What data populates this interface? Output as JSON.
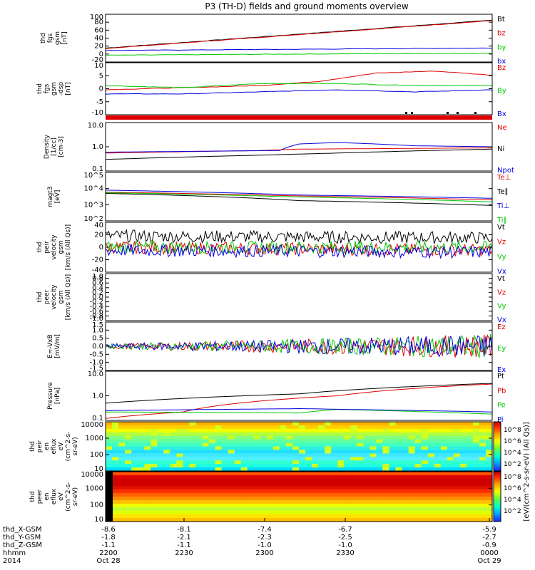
{
  "title": "P3 (TH-D) fields and ground moments overview",
  "colors": {
    "black": "#000000",
    "red": "#e00000",
    "green": "#00c800",
    "blue": "#0000e0"
  },
  "chart_data": [
    {
      "type": "line",
      "panel": "fgs_bt",
      "ylabel": [
        "thd",
        "fgs",
        "gsm",
        "[nT]"
      ],
      "ylim": [
        -20,
        100
      ],
      "yticks": [
        "100",
        "80",
        "60",
        "40",
        "20",
        "0",
        "-20"
      ],
      "series": [
        {
          "name": "Bt",
          "color": "#000000",
          "x": [
            0,
            1
          ],
          "y": [
            15,
            85
          ]
        },
        {
          "name": "bz",
          "color": "#e00000",
          "x": [
            0,
            1
          ],
          "y": [
            14,
            84
          ]
        },
        {
          "name": "by",
          "color": "#00c800",
          "x": [
            0,
            0.5,
            1
          ],
          "y": [
            -3,
            0,
            2
          ]
        },
        {
          "name": "bx",
          "color": "#0000e0",
          "x": [
            0,
            0.5,
            1
          ],
          "y": [
            9,
            12,
            15
          ]
        }
      ]
    },
    {
      "type": "line",
      "panel": "fgs_comp",
      "ylabel": [
        "thd",
        "fgs",
        "gsm",
        "-dsp",
        "[nT]"
      ],
      "ylim": [
        -15,
        10
      ],
      "yticks": [
        "10",
        "5",
        "0",
        "-5",
        "-10"
      ],
      "series": [
        {
          "name": "Bz",
          "color": "#e00000",
          "x": [
            0,
            0.2,
            0.4,
            0.55,
            0.7,
            0.85,
            1
          ],
          "y": [
            -3,
            -2,
            -1,
            1,
            5,
            6,
            4
          ]
        },
        {
          "name": "By",
          "color": "#00c800",
          "x": [
            0,
            0.2,
            0.4,
            0.6,
            0.8,
            1
          ],
          "y": [
            -1,
            -2,
            0,
            0,
            -1,
            -1
          ]
        },
        {
          "name": "Bx",
          "color": "#0000e0",
          "x": [
            0,
            0.2,
            0.4,
            0.6,
            0.8,
            1
          ],
          "y": [
            -5,
            -5,
            -4,
            -3,
            -4,
            -3
          ]
        }
      ]
    },
    {
      "type": "line",
      "panel": "density",
      "yscale": "log",
      "ylabel": [
        "Density",
        "[1/cc]",
        "[cm-3]"
      ],
      "ylim": [
        0.1,
        10
      ],
      "yticks": [
        "10.0",
        "1.0",
        "0.1"
      ],
      "series": [
        {
          "name": "Ne",
          "color": "#e00000",
          "x": [
            0,
            0.4,
            0.5,
            1
          ],
          "y": [
            0.55,
            0.7,
            0.8,
            0.9
          ]
        },
        {
          "name": "Ni",
          "color": "#000000",
          "x": [
            0,
            0.4,
            0.6,
            1
          ],
          "y": [
            0.3,
            0.45,
            0.55,
            0.8
          ]
        },
        {
          "name": "Npot",
          "color": "#0000e0",
          "x": [
            0,
            0.45,
            0.5,
            0.6,
            0.8,
            1
          ],
          "y": [
            0.6,
            0.7,
            1.3,
            1.5,
            1.1,
            1.0
          ]
        }
      ]
    },
    {
      "type": "line",
      "panel": "temperature",
      "yscale": "log",
      "ylabel": [
        "magt3",
        "[eV]"
      ],
      "ylim": [
        100,
        100000
      ],
      "yticks": [
        "10^5",
        "10^4",
        "10^3",
        "10^2"
      ],
      "series": [
        {
          "name": "Te⊥",
          "color": "#e00000",
          "x": [
            0,
            0.5,
            1
          ],
          "y": [
            6000,
            3500,
            2000
          ]
        },
        {
          "name": "Te∥",
          "color": "#000000",
          "x": [
            0,
            0.5,
            1
          ],
          "y": [
            5000,
            1800,
            900
          ]
        },
        {
          "name": "Ti⊥",
          "color": "#0000e0",
          "x": [
            0,
            0.5,
            1
          ],
          "y": [
            8000,
            4000,
            2500
          ]
        },
        {
          "name": "Ti∥",
          "color": "#00c800",
          "x": [
            0,
            0.5,
            1
          ],
          "y": [
            5500,
            3000,
            1500
          ]
        }
      ]
    },
    {
      "type": "line",
      "panel": "peir_velocity",
      "ylabel": [
        "thd",
        "peir",
        "velocity",
        "gsm",
        "[km/s (All Qs)]"
      ],
      "ylim": [
        -40,
        40
      ],
      "yticks": [
        "40",
        "20",
        "0",
        "-20",
        "-40"
      ],
      "series": [
        {
          "name": "Vt",
          "color": "#000000",
          "x": [
            0,
            1
          ],
          "y": [
            18,
            15
          ]
        },
        {
          "name": "Vz",
          "color": "#e00000",
          "x": [
            0,
            1
          ],
          "y": [
            0,
            -5
          ]
        },
        {
          "name": "Vy",
          "color": "#00c800",
          "x": [
            0,
            1
          ],
          "y": [
            0,
            0
          ]
        },
        {
          "name": "Vx",
          "color": "#0000e0",
          "x": [
            0,
            1
          ],
          "y": [
            -5,
            -8
          ]
        }
      ]
    },
    {
      "type": "line",
      "panel": "peer_velocity",
      "ylabel": [
        "thd",
        "peer",
        "velocity",
        "gsm",
        "[km/s (All Qs)]"
      ],
      "ylim": [
        -1.0,
        1.0
      ],
      "yticks": [
        "1.0",
        "0.8",
        "0.6",
        "0.4",
        "0.2",
        "0.0",
        "-0.2",
        "-0.4",
        "-0.6",
        "-0.8",
        "-1.0"
      ],
      "series": [
        {
          "name": "Vt",
          "color": "#000000"
        },
        {
          "name": "Vz",
          "color": "#e00000"
        },
        {
          "name": "Vy",
          "color": "#00c800"
        },
        {
          "name": "Vx",
          "color": "#0000e0"
        }
      ]
    },
    {
      "type": "line",
      "panel": "efield",
      "ylabel": [
        "E=-VxB",
        "[mV/m]"
      ],
      "ylim": [
        -1.5,
        1.5
      ],
      "yticks": [
        "1.5",
        "1.0",
        "0.5",
        "0.0",
        "-0.5",
        "-1.0",
        "-1.5"
      ],
      "series": [
        {
          "name": "Ez",
          "color": "#e00000",
          "x": [
            0,
            1
          ],
          "y": [
            0,
            0
          ]
        },
        {
          "name": "Ey",
          "color": "#00c800",
          "x": [
            0,
            1
          ],
          "y": [
            0,
            0
          ]
        },
        {
          "name": "Ex",
          "color": "#0000e0",
          "x": [
            0,
            1
          ],
          "y": [
            0,
            0
          ]
        }
      ]
    },
    {
      "type": "line",
      "panel": "pressure",
      "yscale": "log",
      "ylabel": [
        "Pressure",
        "[nPa]"
      ],
      "ylim": [
        0.1,
        10
      ],
      "yticks": [
        "10.0",
        "1.0",
        "0.1"
      ],
      "series": [
        {
          "name": "Pt",
          "color": "#000000",
          "x": [
            0,
            0.5,
            1
          ],
          "y": [
            0.5,
            1.2,
            3.2
          ]
        },
        {
          "name": "Pb",
          "color": "#e00000",
          "x": [
            0,
            0.2,
            0.6,
            1
          ],
          "y": [
            0.12,
            0.22,
            1.0,
            3.0
          ]
        },
        {
          "name": "Pe",
          "color": "#00c800",
          "x": [
            0,
            0.5,
            0.6,
            1
          ],
          "y": [
            0.22,
            0.2,
            0.28,
            0.18
          ]
        },
        {
          "name": "Pi",
          "color": "#0000e0",
          "x": [
            0,
            0.5,
            1
          ],
          "y": [
            0.25,
            0.3,
            0.22
          ]
        }
      ]
    },
    {
      "type": "heatmap",
      "panel": "peir_spec",
      "yscale": "log",
      "ylabel": [
        "thd",
        "peir",
        "en",
        "eflux",
        "eV",
        "(cm^2-s-",
        "sr-eV)"
      ],
      "ylim": [
        10,
        20000
      ],
      "yticks": [
        "10000",
        "1000",
        "100",
        "10"
      ]
    },
    {
      "type": "heatmap",
      "panel": "peer_spec",
      "yscale": "log",
      "ylabel": [
        "thd",
        "peer",
        "en",
        "eflux",
        "eV",
        "(cm^2-s-",
        "sr-eV)"
      ],
      "ylim": [
        10,
        20000
      ],
      "yticks": [
        "10000",
        "1000",
        "100",
        "10"
      ]
    }
  ],
  "colorbar": {
    "label": "[eV/(cm^2-s-sr-eV) (All Qs)]",
    "ticks": [
      "10^8",
      "10^6",
      "10^4",
      "10^2"
    ],
    "ticks2": [
      "10^8",
      "10^6",
      "10^4",
      "10^2"
    ]
  },
  "xaxis": {
    "rows": [
      {
        "label": "thd_X-GSM",
        "values": [
          "-8.6",
          "-8.1",
          "-7.4",
          "-6.7",
          "-5.9"
        ]
      },
      {
        "label": "thd_Y-GSM",
        "values": [
          "-1.8",
          "-2.1",
          "-2.3",
          "-2.5",
          "-2.7"
        ]
      },
      {
        "label": "thd_Z-GSM",
        "values": [
          "-1.1",
          "-1.1",
          "-1.0",
          "-1.0",
          "-0.9"
        ]
      },
      {
        "label": "hhmm",
        "values": [
          "2200",
          "2230",
          "2300",
          "2330",
          "0000"
        ]
      },
      {
        "label": "2014",
        "values": [
          "Oct 28",
          "",
          "",
          "",
          "Oct 29"
        ]
      }
    ]
  }
}
